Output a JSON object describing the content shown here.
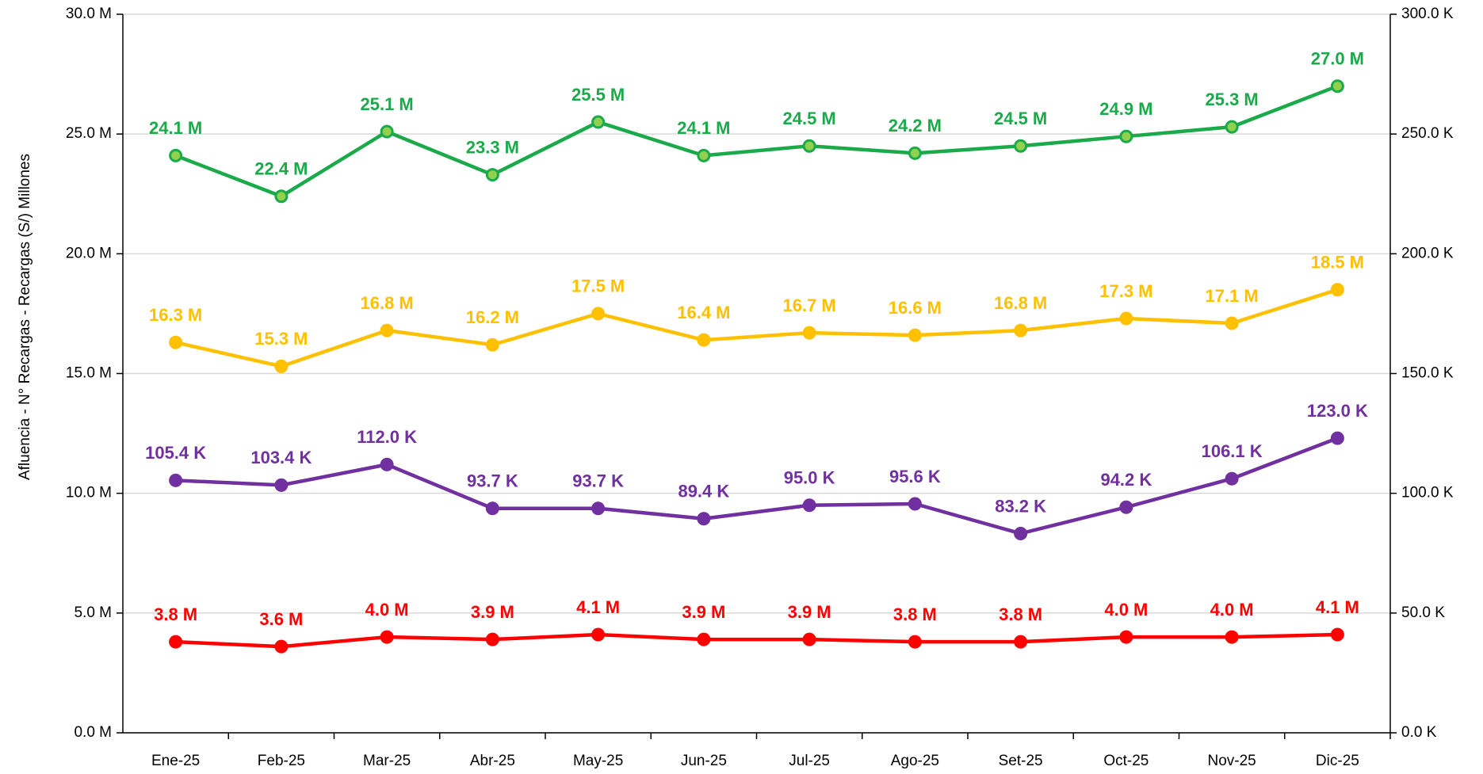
{
  "chart_data": {
    "type": "line",
    "y_label": "Afluencia - N° Recargas  - Recargas (S/) Millones",
    "categories": [
      "Ene-25",
      "Feb-25",
      "Mar-25",
      "Abr-25",
      "May-25",
      "Jun-25",
      "Jul-25",
      "Ago-25",
      "Set-25",
      "Oct-25",
      "Nov-25",
      "Dic-25"
    ],
    "series": [
      {
        "color": "#1aaa4a",
        "values": [
          24.1,
          22.4,
          25.1,
          23.3,
          25.5,
          24.1,
          24.5,
          24.2,
          24.5,
          24.9,
          25.3,
          27.0
        ],
        "value_labels": [
          "24.1 M",
          "22.4 M",
          "25.1 M",
          "23.3 M",
          "25.5 M",
          "24.1 M",
          "24.5 M",
          "24.2 M",
          "24.5 M",
          "24.9 M",
          "25.3 M",
          "27.0 M"
        ]
      },
      {
        "color": "#ffc000",
        "values": [
          16.3,
          15.3,
          16.8,
          16.2,
          17.5,
          16.4,
          16.7,
          16.6,
          16.8,
          17.3,
          17.1,
          18.5
        ],
        "value_labels": [
          "16.3 M",
          "15.3 M",
          "16.8 M",
          "16.2 M",
          "17.5 M",
          "16.4 M",
          "16.7 M",
          "16.6 M",
          "16.8 M",
          "17.3 M",
          "17.1 M",
          "18.5 M"
        ]
      },
      {
        "color": "#7030a0",
        "axis": "y2",
        "values": [
          105.4,
          103.4,
          112.0,
          93.7,
          93.7,
          89.4,
          95.0,
          95.6,
          83.2,
          94.2,
          106.1,
          123.0
        ],
        "value_labels": [
          "105.4 K",
          "103.4 K",
          "112.0 K",
          "93.7 K",
          "93.7 K",
          "89.4 K",
          "95.0 K",
          "95.6 K",
          "83.2 K",
          "94.2 K",
          "106.1 K",
          "123.0 K"
        ]
      },
      {
        "color": "#ff0000",
        "values": [
          3.8,
          3.6,
          4.0,
          3.9,
          4.1,
          3.9,
          3.9,
          3.8,
          3.8,
          4.0,
          4.0,
          4.1
        ],
        "value_labels": [
          "3.8 M",
          "3.6 M",
          "4.0 M",
          "3.9 M",
          "4.1 M",
          "3.9 M",
          "3.9 M",
          "3.8 M",
          "3.8 M",
          "4.0 M",
          "4.0 M",
          "4.1 M"
        ]
      }
    ],
    "ylim": [
      0,
      30
    ],
    "yticks": [
      {
        "value": 0,
        "label": "0.0 M"
      },
      {
        "value": 5,
        "label": "5.0 M"
      },
      {
        "value": 10,
        "label": "10.0 M"
      },
      {
        "value": 15,
        "label": "15.0 M"
      },
      {
        "value": 20,
        "label": "20.0 M"
      },
      {
        "value": 25,
        "label": "25.0 M"
      },
      {
        "value": 30,
        "label": "30.0 M"
      }
    ],
    "y2lim": [
      0,
      300
    ],
    "y2ticks": [
      {
        "value": 0,
        "label": "0.0 K"
      },
      {
        "value": 50,
        "label": "50.0 K"
      },
      {
        "value": 100,
        "label": "100.0 K"
      },
      {
        "value": 150,
        "label": "150.0 K"
      },
      {
        "value": 200,
        "label": "200.0 K"
      },
      {
        "value": 250,
        "label": "250.0 K"
      },
      {
        "value": 300,
        "label": "300.0 K"
      }
    ],
    "grid": true
  }
}
